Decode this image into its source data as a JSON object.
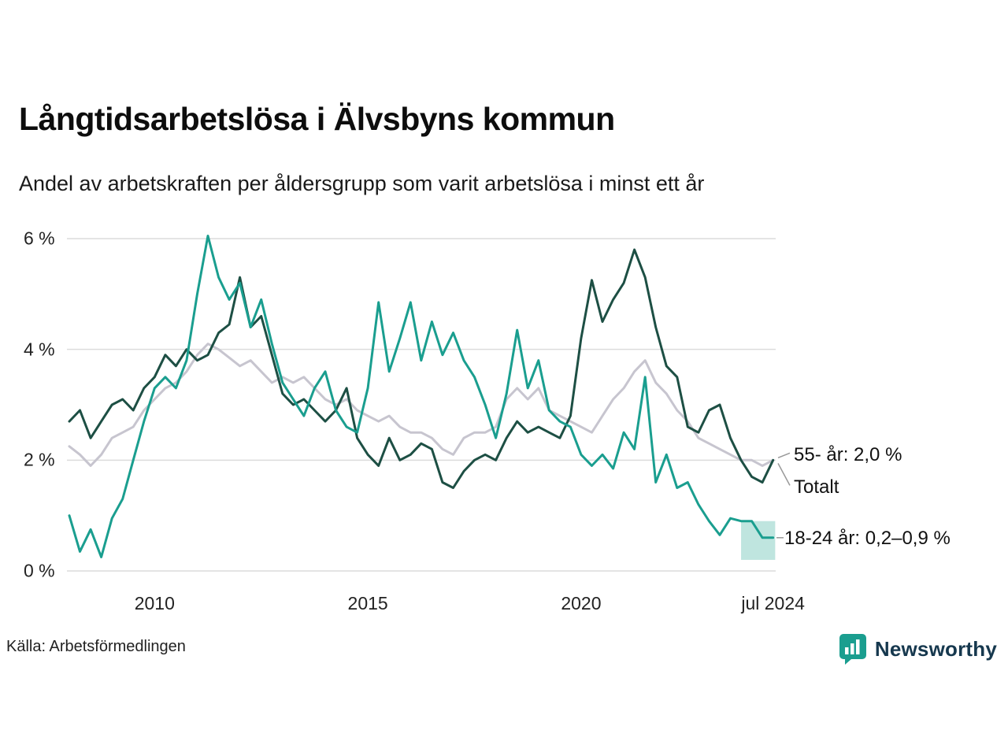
{
  "footer": {
    "source": "Källa: Arbetsförmedlingen",
    "brand": "Newsworthy"
  },
  "colors": {
    "teal": "#1a9e8f",
    "dark_green": "#1d4f44",
    "gray": "#c7c5cf",
    "band": "#7fccc0",
    "grid": "#dcdcdc",
    "leader": "#999999",
    "brand_text": "#16384e"
  },
  "chart_data": {
    "type": "line",
    "title": "Långtidsarbetslösa i Älvsbyns kommun",
    "subtitle": "Andel av arbetskraften per åldersgrupp som varit arbetslösa i minst ett år",
    "x_domain": [
      2008.0,
      2024.58
    ],
    "y_domain": [
      0,
      6
    ],
    "grid": "horizontal",
    "legend_position": "right-annotations",
    "y_ticks": [
      {
        "value": 0,
        "label": "0 %"
      },
      {
        "value": 2,
        "label": "2 %"
      },
      {
        "value": 4,
        "label": "4 %"
      },
      {
        "value": 6,
        "label": "6 %"
      }
    ],
    "x_ticks": [
      {
        "value": 2010,
        "label": "2010"
      },
      {
        "value": 2015,
        "label": "2015"
      },
      {
        "value": 2020,
        "label": "2020"
      },
      {
        "value": 2024.5,
        "label": "jul 2024"
      }
    ],
    "series": [
      {
        "name": "Totalt",
        "color": "#c7c5cf",
        "width": 3,
        "points": [
          [
            2008,
            2.25
          ],
          [
            2008.25,
            2.1
          ],
          [
            2008.5,
            1.9
          ],
          [
            2008.75,
            2.1
          ],
          [
            2009,
            2.4
          ],
          [
            2009.25,
            2.5
          ],
          [
            2009.5,
            2.6
          ],
          [
            2009.75,
            2.9
          ],
          [
            2010,
            3.1
          ],
          [
            2010.25,
            3.3
          ],
          [
            2010.5,
            3.4
          ],
          [
            2010.75,
            3.6
          ],
          [
            2011,
            3.9
          ],
          [
            2011.25,
            4.1
          ],
          [
            2011.5,
            4.0
          ],
          [
            2011.75,
            3.85
          ],
          [
            2012,
            3.7
          ],
          [
            2012.25,
            3.8
          ],
          [
            2012.5,
            3.6
          ],
          [
            2012.75,
            3.4
          ],
          [
            2013,
            3.5
          ],
          [
            2013.25,
            3.4
          ],
          [
            2013.5,
            3.5
          ],
          [
            2013.75,
            3.3
          ],
          [
            2014,
            3.1
          ],
          [
            2014.25,
            3.0
          ],
          [
            2014.5,
            3.1
          ],
          [
            2014.75,
            2.9
          ],
          [
            2015,
            2.8
          ],
          [
            2015.25,
            2.7
          ],
          [
            2015.5,
            2.8
          ],
          [
            2015.75,
            2.6
          ],
          [
            2016,
            2.5
          ],
          [
            2016.25,
            2.5
          ],
          [
            2016.5,
            2.4
          ],
          [
            2016.75,
            2.2
          ],
          [
            2017,
            2.1
          ],
          [
            2017.25,
            2.4
          ],
          [
            2017.5,
            2.5
          ],
          [
            2017.75,
            2.5
          ],
          [
            2018,
            2.6
          ],
          [
            2018.25,
            3.1
          ],
          [
            2018.5,
            3.3
          ],
          [
            2018.75,
            3.1
          ],
          [
            2019,
            3.3
          ],
          [
            2019.25,
            2.9
          ],
          [
            2019.5,
            2.8
          ],
          [
            2019.75,
            2.7
          ],
          [
            2020,
            2.6
          ],
          [
            2020.25,
            2.5
          ],
          [
            2020.5,
            2.8
          ],
          [
            2020.75,
            3.1
          ],
          [
            2021,
            3.3
          ],
          [
            2021.25,
            3.6
          ],
          [
            2021.5,
            3.8
          ],
          [
            2021.75,
            3.4
          ],
          [
            2022,
            3.2
          ],
          [
            2022.25,
            2.9
          ],
          [
            2022.5,
            2.7
          ],
          [
            2022.75,
            2.4
          ],
          [
            2023,
            2.3
          ],
          [
            2023.25,
            2.2
          ],
          [
            2023.5,
            2.1
          ],
          [
            2023.75,
            2.0
          ],
          [
            2024,
            2.0
          ],
          [
            2024.25,
            1.9
          ],
          [
            2024.5,
            2.0
          ]
        ]
      },
      {
        "name": "55- år",
        "color": "#1d4f44",
        "width": 3,
        "points": [
          [
            2008,
            2.7
          ],
          [
            2008.25,
            2.9
          ],
          [
            2008.5,
            2.4
          ],
          [
            2008.75,
            2.7
          ],
          [
            2009,
            3.0
          ],
          [
            2009.25,
            3.1
          ],
          [
            2009.5,
            2.9
          ],
          [
            2009.75,
            3.3
          ],
          [
            2010,
            3.5
          ],
          [
            2010.25,
            3.9
          ],
          [
            2010.5,
            3.7
          ],
          [
            2010.75,
            4.0
          ],
          [
            2011,
            3.8
          ],
          [
            2011.25,
            3.9
          ],
          [
            2011.5,
            4.3
          ],
          [
            2011.75,
            4.45
          ],
          [
            2012,
            5.3
          ],
          [
            2012.25,
            4.4
          ],
          [
            2012.5,
            4.6
          ],
          [
            2012.75,
            3.9
          ],
          [
            2013,
            3.2
          ],
          [
            2013.25,
            3.0
          ],
          [
            2013.5,
            3.1
          ],
          [
            2013.75,
            2.9
          ],
          [
            2014,
            2.7
          ],
          [
            2014.25,
            2.9
          ],
          [
            2014.5,
            3.3
          ],
          [
            2014.75,
            2.4
          ],
          [
            2015,
            2.1
          ],
          [
            2015.25,
            1.9
          ],
          [
            2015.5,
            2.4
          ],
          [
            2015.75,
            2.0
          ],
          [
            2016,
            2.1
          ],
          [
            2016.25,
            2.3
          ],
          [
            2016.5,
            2.2
          ],
          [
            2016.75,
            1.6
          ],
          [
            2017,
            1.5
          ],
          [
            2017.25,
            1.8
          ],
          [
            2017.5,
            2.0
          ],
          [
            2017.75,
            2.1
          ],
          [
            2018,
            2.0
          ],
          [
            2018.25,
            2.4
          ],
          [
            2018.5,
            2.7
          ],
          [
            2018.75,
            2.5
          ],
          [
            2019,
            2.6
          ],
          [
            2019.25,
            2.5
          ],
          [
            2019.5,
            2.4
          ],
          [
            2019.75,
            2.8
          ],
          [
            2020,
            4.2
          ],
          [
            2020.25,
            5.25
          ],
          [
            2020.5,
            4.5
          ],
          [
            2020.75,
            4.9
          ],
          [
            2021,
            5.2
          ],
          [
            2021.25,
            5.8
          ],
          [
            2021.5,
            5.3
          ],
          [
            2021.75,
            4.4
          ],
          [
            2022,
            3.7
          ],
          [
            2022.25,
            3.5
          ],
          [
            2022.5,
            2.6
          ],
          [
            2022.75,
            2.5
          ],
          [
            2023,
            2.9
          ],
          [
            2023.25,
            3.0
          ],
          [
            2023.5,
            2.4
          ],
          [
            2023.75,
            2.0
          ],
          [
            2024,
            1.7
          ],
          [
            2024.25,
            1.6
          ],
          [
            2024.5,
            2.0
          ]
        ]
      },
      {
        "name": "18-24 år",
        "color": "#1a9e8f",
        "width": 3,
        "points": [
          [
            2008,
            1.0
          ],
          [
            2008.25,
            0.35
          ],
          [
            2008.5,
            0.75
          ],
          [
            2008.75,
            0.25
          ],
          [
            2009,
            0.95
          ],
          [
            2009.25,
            1.3
          ],
          [
            2009.5,
            2.0
          ],
          [
            2009.75,
            2.7
          ],
          [
            2010,
            3.3
          ],
          [
            2010.25,
            3.5
          ],
          [
            2010.5,
            3.3
          ],
          [
            2010.75,
            3.8
          ],
          [
            2011,
            5.0
          ],
          [
            2011.25,
            6.05
          ],
          [
            2011.5,
            5.3
          ],
          [
            2011.75,
            4.9
          ],
          [
            2012,
            5.2
          ],
          [
            2012.25,
            4.4
          ],
          [
            2012.5,
            4.9
          ],
          [
            2012.75,
            4.1
          ],
          [
            2013,
            3.4
          ],
          [
            2013.25,
            3.1
          ],
          [
            2013.5,
            2.8
          ],
          [
            2013.75,
            3.3
          ],
          [
            2014,
            3.6
          ],
          [
            2014.25,
            2.9
          ],
          [
            2014.5,
            2.6
          ],
          [
            2014.75,
            2.5
          ],
          [
            2015,
            3.3
          ],
          [
            2015.25,
            4.85
          ],
          [
            2015.5,
            3.6
          ],
          [
            2015.75,
            4.2
          ],
          [
            2016,
            4.85
          ],
          [
            2016.25,
            3.8
          ],
          [
            2016.5,
            4.5
          ],
          [
            2016.75,
            3.9
          ],
          [
            2017,
            4.3
          ],
          [
            2017.25,
            3.8
          ],
          [
            2017.5,
            3.5
          ],
          [
            2017.75,
            3.0
          ],
          [
            2018,
            2.4
          ],
          [
            2018.25,
            3.2
          ],
          [
            2018.5,
            4.35
          ],
          [
            2018.75,
            3.3
          ],
          [
            2019,
            3.8
          ],
          [
            2019.25,
            2.9
          ],
          [
            2019.5,
            2.7
          ],
          [
            2019.75,
            2.6
          ],
          [
            2020,
            2.1
          ],
          [
            2020.25,
            1.9
          ],
          [
            2020.5,
            2.1
          ],
          [
            2020.75,
            1.85
          ],
          [
            2021,
            2.5
          ],
          [
            2021.25,
            2.2
          ],
          [
            2021.5,
            3.5
          ],
          [
            2021.75,
            1.6
          ],
          [
            2022,
            2.1
          ],
          [
            2022.25,
            1.5
          ],
          [
            2022.5,
            1.6
          ],
          [
            2022.75,
            1.2
          ],
          [
            2023,
            0.9
          ],
          [
            2023.25,
            0.65
          ],
          [
            2023.5,
            0.95
          ],
          [
            2023.75,
            0.9
          ],
          [
            2024,
            0.9
          ],
          [
            2024.25,
            0.6
          ],
          [
            2024.5,
            0.6
          ]
        ]
      }
    ],
    "band": {
      "series": "18-24 år",
      "x_start": 2023.75,
      "x_end": 2024.55,
      "y_low": 0.2,
      "y_high": 0.9,
      "color": "#7fccc0",
      "opacity": 0.5
    },
    "annotations": [
      {
        "label": "55- år: 2,0 %",
        "value": 2.0
      },
      {
        "label": "Totalt",
        "value": 2.0
      },
      {
        "label": "18-24 år: 0,2–0,9 %",
        "value_low": 0.2,
        "value_high": 0.9
      }
    ]
  }
}
